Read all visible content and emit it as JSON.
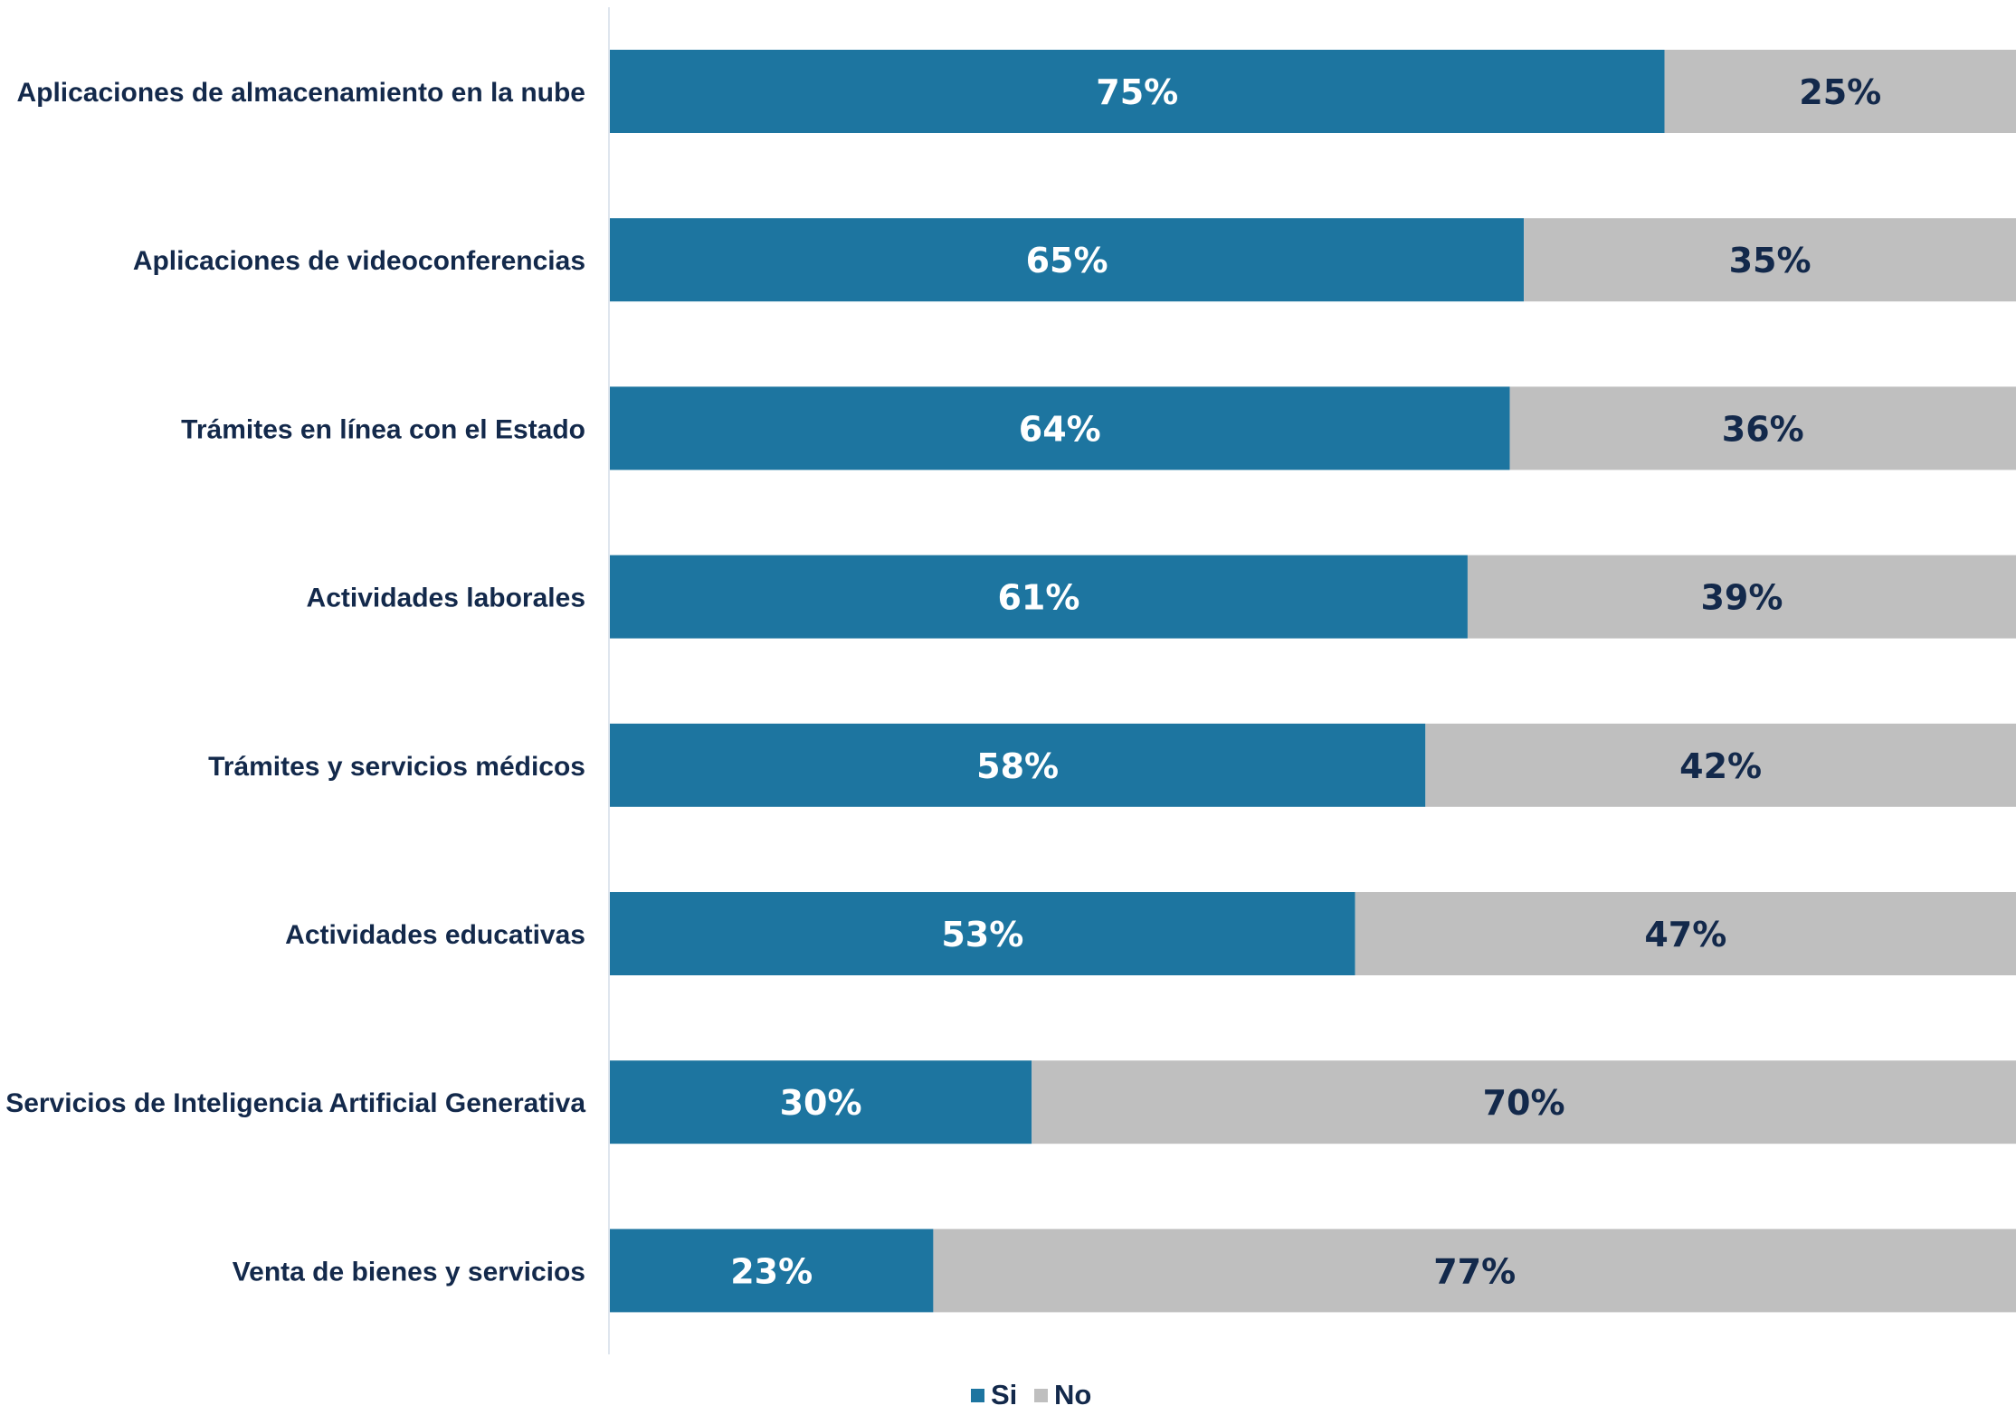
{
  "chart_data": {
    "type": "bar",
    "orientation": "horizontal",
    "stacked": true,
    "title": "",
    "xlabel": "",
    "ylabel": "",
    "xlim": [
      0,
      100
    ],
    "grid": false,
    "legend_position": "bottom",
    "categories": [
      "Aplicaciones de almacenamiento en la nube",
      "Aplicaciones de videoconferencias",
      "Trámites en línea con el Estado",
      "Actividades laborales",
      "Trámites y servicios médicos",
      "Actividades educativas",
      "Servicios de Inteligencia Artificial Generativa",
      "Venta de bienes y servicios"
    ],
    "series": [
      {
        "name": "Si",
        "color": "#1d75a0",
        "label_color": "#ffffff",
        "values": [
          75,
          65,
          64,
          61,
          58,
          53,
          30,
          23
        ],
        "labels": [
          "75%",
          "65%",
          "64%",
          "61%",
          "58%",
          "53%",
          "30%",
          "23%"
        ]
      },
      {
        "name": "No",
        "color": "#bfbfbf",
        "label_color": "#13294b",
        "values": [
          25,
          35,
          36,
          39,
          42,
          47,
          70,
          77
        ],
        "labels": [
          "25%",
          "35%",
          "36%",
          "39%",
          "42%",
          "47%",
          "70%",
          "77%"
        ]
      }
    ],
    "colors": {
      "text": "#13294b",
      "axis": "#dfe6ee"
    }
  }
}
